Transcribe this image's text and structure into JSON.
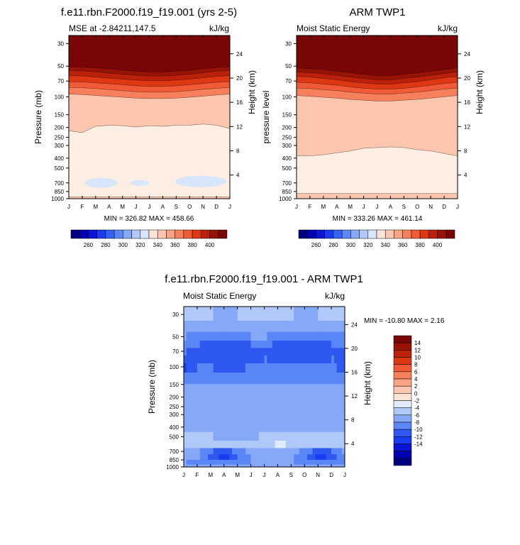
{
  "chart_data": [
    {
      "type": "contour",
      "title": "f.e11.rbn.F2000.f19_f19.001 (yrs 2-5)",
      "left_label": "MSE at -2.84211,147.5",
      "right_label": "kJ/kg",
      "ylabel": "Pressure (mb)",
      "y2label": "Height (km)",
      "months": [
        "J",
        "F",
        "M",
        "A",
        "M",
        "J",
        "J",
        "A",
        "S",
        "O",
        "N",
        "D",
        "J"
      ],
      "pressure_ticks": [
        30,
        50,
        70,
        100,
        150,
        200,
        250,
        300,
        400,
        500,
        700,
        850,
        1000
      ],
      "height_ticks": [
        24,
        20,
        16,
        12,
        8,
        4
      ],
      "ylim": [
        1000,
        30
      ],
      "min_max_text": "MIN = 326.82 MAX = 458.66",
      "colorbar_ticks": [
        260,
        280,
        300,
        320,
        340,
        360,
        380,
        400
      ],
      "contour_levels": [
        400,
        390,
        380,
        370,
        360,
        350,
        340
      ],
      "level_pressure_by_month": [
        [
          50.5,
          51,
          52,
          53,
          54.5,
          56,
          57,
          57,
          56,
          55,
          53,
          51.5,
          50.5
        ],
        [
          55,
          55.5,
          57,
          58.5,
          60,
          61.5,
          62.5,
          62.5,
          61.5,
          60,
          58,
          56,
          55
        ],
        [
          62,
          62.5,
          64,
          65.5,
          67,
          68.5,
          69.5,
          69.5,
          68.5,
          67,
          65,
          63,
          62
        ],
        [
          71,
          71.5,
          73,
          74.5,
          76,
          78,
          79,
          79,
          78,
          76,
          74,
          72,
          71
        ],
        [
          81,
          81.5,
          83,
          85,
          87,
          89,
          90,
          90,
          89,
          87,
          84.5,
          82.5,
          81
        ],
        [
          94,
          95,
          97,
          99,
          101,
          103,
          104,
          104,
          103,
          101,
          98.5,
          96,
          94
        ],
        [
          215,
          225,
          195,
          190,
          192,
          198,
          192,
          195,
          190,
          190,
          185,
          190,
          205
        ]
      ],
      "low_region_pressure": 700,
      "bottom_level_pressure": 960
    },
    {
      "type": "contour",
      "title": "ARM TWP1",
      "left_label": "Moist Static Energy",
      "right_label": "kJ/kg",
      "ylabel": "pressure level",
      "y2label": "Height (km)",
      "months": [
        "J",
        "F",
        "M",
        "A",
        "M",
        "J",
        "J",
        "A",
        "S",
        "O",
        "N",
        "D",
        "J"
      ],
      "pressure_ticks": [
        30,
        50,
        70,
        100,
        150,
        200,
        250,
        300,
        400,
        500,
        700,
        850,
        1000
      ],
      "height_ticks": [
        24,
        20,
        16,
        12,
        8,
        4
      ],
      "ylim": [
        1000,
        30
      ],
      "min_max_text": "MIN = 333.26 MAX = 461.14",
      "colorbar_ticks": [
        260,
        280,
        300,
        320,
        340,
        360,
        380,
        400
      ],
      "contour_levels": [
        400,
        390,
        380,
        370,
        360,
        350,
        340
      ],
      "level_pressure_by_month": [
        [
          52,
          53,
          54,
          56,
          58,
          60,
          62,
          62,
          60,
          58,
          56,
          54,
          52
        ],
        [
          57,
          58,
          59.5,
          61.5,
          64,
          66,
          68,
          68,
          66,
          64,
          61.5,
          59,
          57
        ],
        [
          63,
          64,
          66,
          68,
          71,
          73,
          75,
          75,
          73,
          71,
          68,
          65,
          63
        ],
        [
          72,
          73,
          75,
          77,
          80,
          82.5,
          84,
          84,
          82.5,
          80,
          77,
          74,
          72
        ],
        [
          82,
          83,
          85,
          87,
          90,
          92,
          94,
          94,
          92,
          90,
          87,
          84,
          82
        ],
        [
          97,
          99,
          101,
          103,
          106,
          108,
          110,
          110,
          108,
          106,
          103,
          100,
          97
        ],
        [
          380,
          380,
          370,
          355,
          340,
          320,
          315,
          310,
          315,
          330,
          340,
          360,
          380
        ]
      ],
      "bottom_level_pressure": 890
    },
    {
      "type": "contour",
      "title": "f.e11.rbn.F2000.f19_f19.001 - ARM TWP1",
      "left_label": "Moist Static Energy",
      "right_label": "kJ/kg",
      "ylabel": "Pressure (mb)",
      "y2label": "Height (km)",
      "months": [
        "J",
        "F",
        "M",
        "A",
        "M",
        "J",
        "J",
        "A",
        "S",
        "O",
        "N",
        "D",
        "J"
      ],
      "pressure_ticks": [
        30,
        50,
        70,
        100,
        150,
        200,
        250,
        300,
        400,
        500,
        700,
        850,
        1000
      ],
      "height_ticks": [
        24,
        20,
        16,
        12,
        8,
        4
      ],
      "ylim": [
        1000,
        30
      ],
      "min_max_text": "MIN = -10.80 MAX =   2.16",
      "colorbar_ticks": [
        14,
        12,
        10,
        8,
        6,
        4,
        2,
        0,
        -2,
        -4,
        -6,
        -8,
        -10,
        -12,
        -14
      ],
      "value_grid_pressures": [
        30,
        40,
        50,
        60,
        70,
        85,
        100,
        130,
        170,
        250,
        400,
        500,
        600,
        700,
        800,
        900,
        1000
      ],
      "value_grid": [
        [
          -2,
          -1.5,
          -2,
          -2.5,
          -2,
          -1.5,
          -1,
          -1.5,
          -2,
          -2.5,
          -2,
          -2,
          -2
        ],
        [
          -3,
          -3,
          -3,
          -3.5,
          -3,
          -2.5,
          -2.5,
          -3,
          -3,
          -3.5,
          -3,
          -3,
          -3
        ],
        [
          -4,
          -4.5,
          -5,
          -5.5,
          -5,
          -4,
          -4,
          -4.5,
          -5,
          -5.5,
          -5,
          -4.5,
          -4
        ],
        [
          -5,
          -6,
          -7,
          -7.5,
          -7,
          -6,
          -5.5,
          -6.5,
          -7,
          -7,
          -6.5,
          -6,
          -5
        ],
        [
          -6,
          -7,
          -7.5,
          -8,
          -8,
          -7,
          -6.5,
          -7,
          -7.5,
          -8,
          -7,
          -6.5,
          -6
        ],
        [
          -7,
          -6.5,
          -7,
          -7.5,
          -7.5,
          -6.5,
          -6,
          -7,
          -7,
          -7.5,
          -6.5,
          -6,
          -7
        ],
        [
          -8.5,
          -6,
          -6,
          -6.5,
          -6.5,
          -5.5,
          -5,
          -5.5,
          -6,
          -6,
          -5.5,
          -5,
          -8.5
        ],
        [
          -5,
          -4.5,
          -4.5,
          -5,
          -5,
          -4.5,
          -4.5,
          -4.5,
          -4.5,
          -4.5,
          -4.5,
          -4.5,
          -5
        ],
        [
          -4,
          -3.8,
          -4,
          -4,
          -4,
          -3.8,
          -3.5,
          -3.8,
          -3.8,
          -4,
          -3.8,
          -3.8,
          -4
        ],
        [
          -3.5,
          -3.5,
          -4,
          -4,
          -3.5,
          -3,
          -3,
          -3,
          -3.5,
          -3.5,
          -3.5,
          -3.5,
          -3.5
        ],
        [
          -3,
          -2.5,
          -3,
          -3,
          -4,
          -3,
          -2.5,
          -2.5,
          -2.5,
          -3,
          -3,
          -3,
          -3
        ],
        [
          -2,
          -2,
          -2,
          -2.5,
          -3,
          -2.5,
          -1.5,
          -1,
          -1.5,
          -2,
          -2,
          -2,
          -2
        ],
        [
          -1,
          -1,
          -1,
          -1.5,
          -2,
          -1.5,
          -1,
          0.5,
          -0.5,
          -1,
          -1,
          -1,
          -1
        ],
        [
          -3,
          -4,
          -6,
          -7,
          -5,
          -3,
          -4,
          -3,
          -3,
          -5,
          -7,
          -6,
          -3
        ],
        [
          -4,
          -4,
          -7,
          -9,
          -6,
          -4,
          -4,
          -4,
          -4,
          -6,
          -9,
          -7,
          -4
        ],
        [
          -4,
          -4.5,
          -5,
          -5,
          -4.5,
          -4,
          -4,
          -4,
          -4,
          -4.5,
          -5,
          -5,
          -4
        ],
        [
          -3,
          -3,
          -3,
          -3,
          -3,
          -3,
          -3,
          -3,
          -3,
          -3,
          -3,
          -3,
          -3
        ]
      ]
    }
  ]
}
